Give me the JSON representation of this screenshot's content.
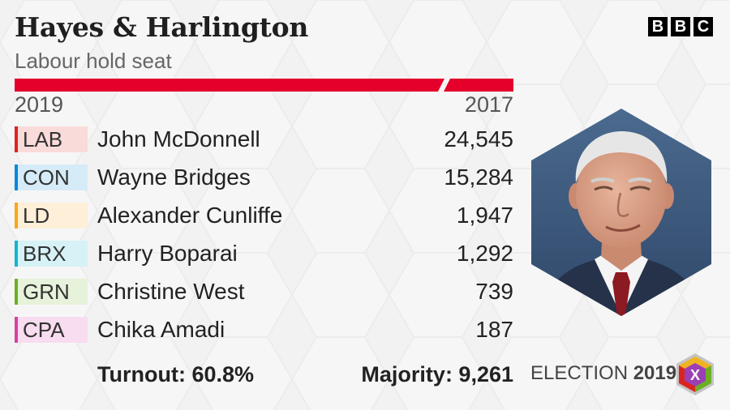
{
  "header": {
    "title": "Hayes & Harlington",
    "subtitle": "Labour hold seat"
  },
  "brand": {
    "logo_letters": [
      "B",
      "B",
      "C"
    ]
  },
  "bar": {
    "label_left": "2019",
    "label_right": "2017",
    "color": "#e4002b"
  },
  "results": [
    {
      "party": "LAB",
      "candidate": "John McDonnell",
      "votes": "24,545",
      "color": "#dc241f",
      "bg": "#f9dbda"
    },
    {
      "party": "CON",
      "candidate": "Wayne Bridges",
      "votes": "15,284",
      "color": "#0087dc",
      "bg": "#d6ebf8"
    },
    {
      "party": "LD",
      "candidate": "Alexander Cunliffe",
      "votes": "1,947",
      "color": "#faa61a",
      "bg": "#fdefd8"
    },
    {
      "party": "BRX",
      "candidate": "Harry Boparai",
      "votes": "1,292",
      "color": "#12b6cf",
      "bg": "#d6f2f6"
    },
    {
      "party": "GRN",
      "candidate": "Christine West",
      "votes": "739",
      "color": "#6ab023",
      "bg": "#e6f2da"
    },
    {
      "party": "CPA",
      "candidate": "Chika Amadi",
      "votes": "187",
      "color": "#d93fa3",
      "bg": "#f8dcef"
    }
  ],
  "summary": {
    "turnout": "Turnout: 60.8%",
    "majority": "Majority: 9,261"
  },
  "branding": {
    "election_word": "ELECTION",
    "election_year": "2019",
    "logo_mark": "X"
  },
  "photo": {
    "icon": "candidate-photo"
  }
}
